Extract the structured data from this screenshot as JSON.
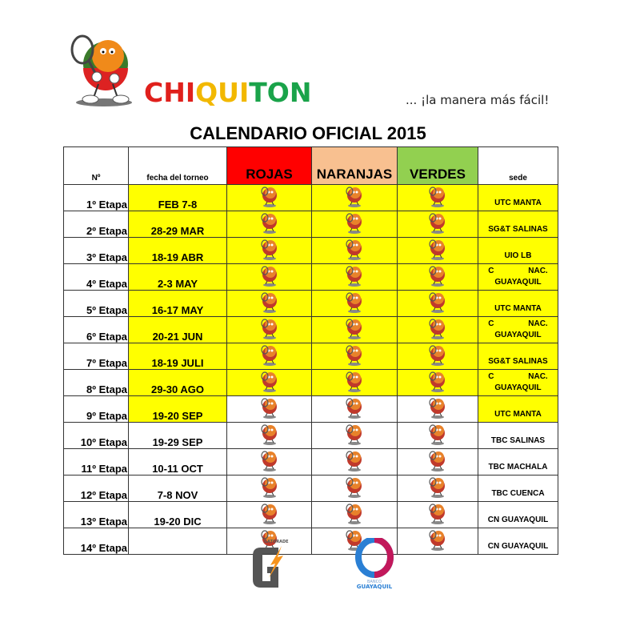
{
  "header": {
    "brand_parts": [
      {
        "text": "CHI",
        "color": "#e0201c"
      },
      {
        "text": "QUI",
        "color": "#f2b800"
      },
      {
        "text": "TON",
        "color": "#1aa34a"
      }
    ],
    "tagline": "... ¡la manera más fácil!",
    "title": "CALENDARIO OFICIAL 2015"
  },
  "table": {
    "columns": [
      {
        "label": "Nº"
      },
      {
        "label": "fecha del torneo"
      },
      {
        "label": "ROJAS",
        "color": "#ff0000"
      },
      {
        "label": "NARANJAS",
        "color": "#f8c090"
      },
      {
        "label": "VERDES",
        "color": "#92d050"
      },
      {
        "label": "sede"
      }
    ],
    "highlight_color": "#ffff00",
    "icon": "chiquiton-mascot-icon",
    "rows": [
      {
        "n": "1º Etapa",
        "date": "FEB 7-8",
        "sede": "UTC  MANTA",
        "hl": "all"
      },
      {
        "n": "2º Etapa",
        "date": "28-29 MAR",
        "sede": "SG&T SALINAS",
        "hl": "all"
      },
      {
        "n": "3º Etapa",
        "date": "18-19 ABR",
        "sede": "UIO LB",
        "hl": "all"
      },
      {
        "n": "4º Etapa",
        "date": "2-3 MAY",
        "sede": "C NAC. GUAYAQUIL",
        "hl": "all"
      },
      {
        "n": "5º Etapa",
        "date": "16-17 MAY",
        "sede": "UTC  MANTA",
        "hl": "all"
      },
      {
        "n": "6º Etapa",
        "date": "20-21 JUN",
        "sede": "C NAC. GUAYAQUIL",
        "hl": "all"
      },
      {
        "n": "7º Etapa",
        "date": "18-19 JULI",
        "sede": "SG&T SALINAS",
        "hl": "all"
      },
      {
        "n": "8º Etapa",
        "date": "29-30 AGO",
        "sede": "C NAC. GUAYAQUIL",
        "hl": "all"
      },
      {
        "n": "9º Etapa",
        "date": "19-20 SEP",
        "sede": "UTC  MANTA",
        "hl": "date-sede"
      },
      {
        "n": "10º Etapa",
        "date": "19-29 SEP",
        "sede": "TBC SALINAS",
        "hl": "none"
      },
      {
        "n": "11º Etapa",
        "date": "10-11 OCT",
        "sede": "TBC MACHALA",
        "hl": "none"
      },
      {
        "n": "12º Etapa",
        "date": "7-8 NOV",
        "sede": "TBC CUENCA",
        "hl": "none"
      },
      {
        "n": "13º Etapa",
        "date": "19-20 DIC",
        "sede": "CN GUAYAQUIL",
        "hl": "none"
      },
      {
        "n": "14º Etapa",
        "date": "",
        "sede": "CN GUAYAQUIL",
        "hl": "none"
      }
    ]
  },
  "sponsors": [
    {
      "name": "GATORADE",
      "icon": "gatorade-logo"
    },
    {
      "name": "BANCO GUAYAQUIL",
      "icon": "banco-guayaquil-logo"
    }
  ]
}
